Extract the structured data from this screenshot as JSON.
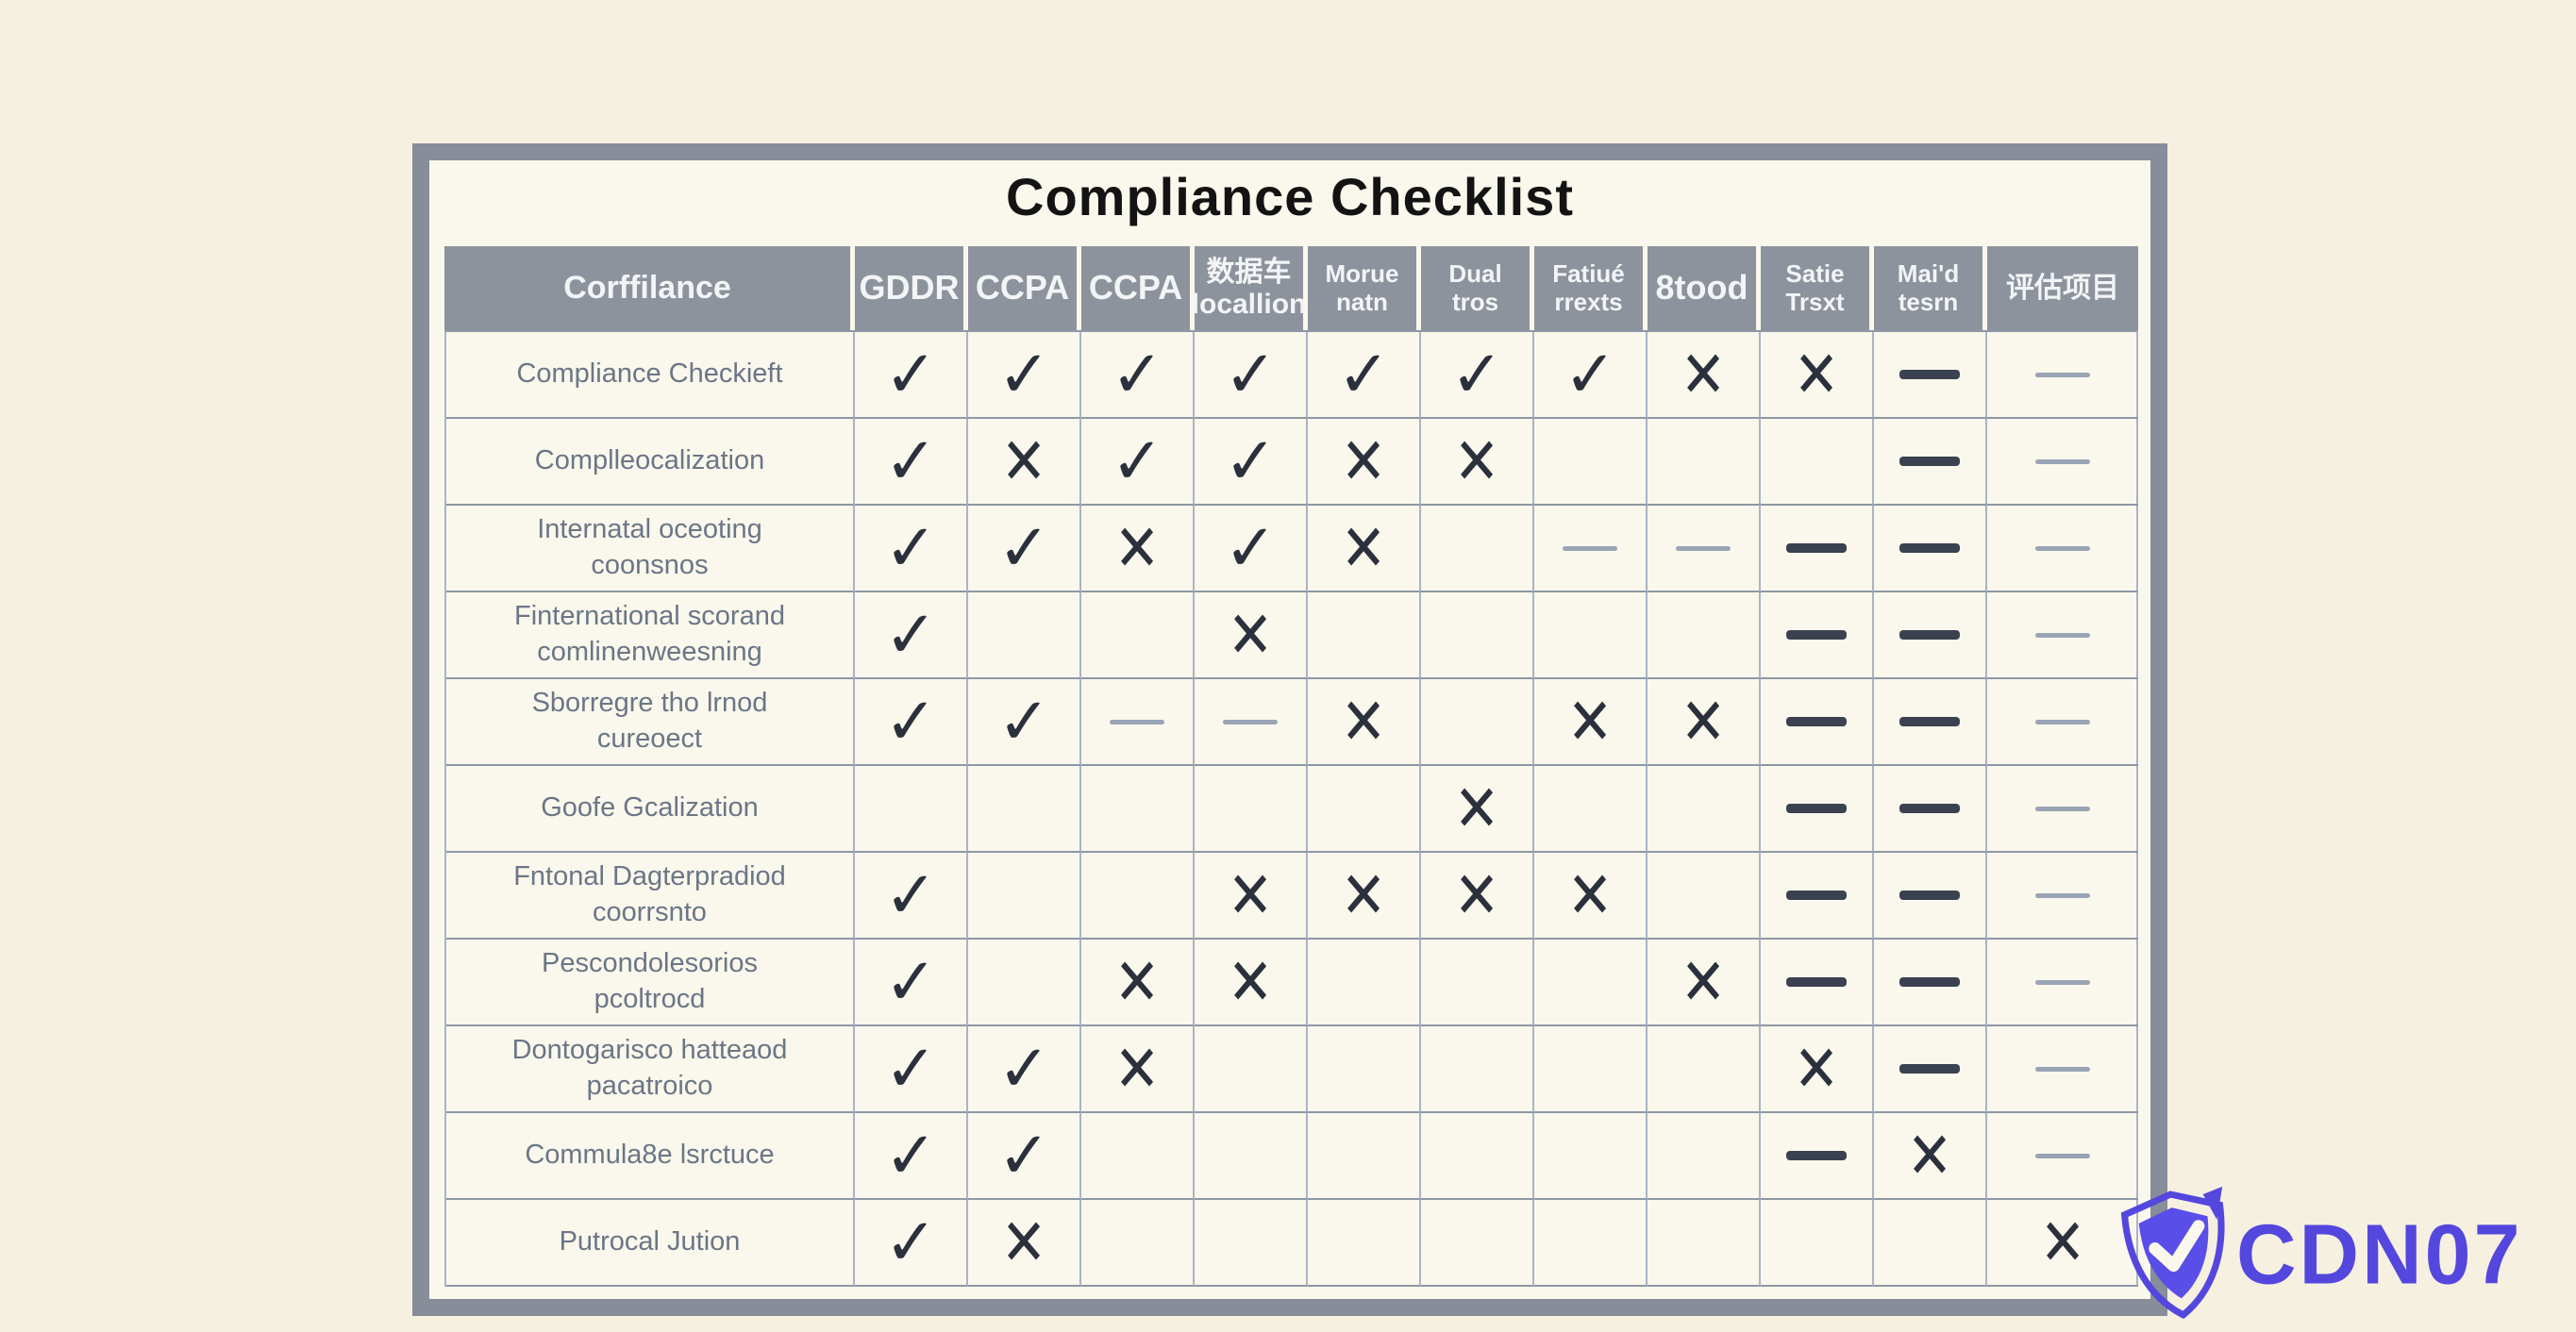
{
  "title": "Compliance Checklist",
  "marks": {
    "check": "✓",
    "x": "✕",
    "dash": "—"
  },
  "colors": {
    "page_bg": "#f6f0e1",
    "frame_border": "#878e99",
    "table_bg": "#faf7ec",
    "header_bg": "#8d939d",
    "header_text": "#f3f4f6",
    "grid_vertical": "#a9b4c6",
    "grid_horizontal": "#8d98a6",
    "mark": "#2a303c",
    "dash_bold": "#3a4150",
    "dash_thin": "#99a4b4",
    "label_text": "#6b7686",
    "watermark": "#5447dd"
  },
  "table": {
    "header": [
      "Corffilance",
      "GDDR",
      "CCPA",
      "CCPA",
      "数据车\nlocallion",
      "Morue\nnatn",
      "Dual\ntros",
      "Fatiué\nrrexts",
      "8tood",
      "Satie\nTrsxt",
      "Mai'd\ntesrn",
      "评估项目"
    ],
    "rows": [
      {
        "label": "Compliance Checkieft",
        "cells": [
          "check",
          "check",
          "check",
          "check",
          "check",
          "check",
          "check",
          "x",
          "x",
          "dash",
          "thin"
        ]
      },
      {
        "label": "Complleocalization",
        "cells": [
          "check",
          "x",
          "check",
          "check",
          "x",
          "x",
          "",
          "",
          "",
          "dash",
          "thin"
        ]
      },
      {
        "label": "Internatal oceoting\ncoonsnos",
        "cells": [
          "check",
          "check",
          "x",
          "check",
          "x",
          "",
          "thin",
          "thin",
          "dash",
          "dash",
          "thin"
        ]
      },
      {
        "label": "Finternational scorand\ncomlinenweesning",
        "cells": [
          "check",
          "",
          "",
          "x",
          "",
          "",
          "",
          "",
          "dash",
          "dash",
          "thin"
        ]
      },
      {
        "label": "Sborregre tho lrnod\ncureoect",
        "cells": [
          "check",
          "check",
          "thin",
          "thin",
          "x",
          "",
          "x",
          "x",
          "dash",
          "dash",
          "thin"
        ]
      },
      {
        "label": "Goofe Gcalization",
        "cells": [
          "",
          "",
          "",
          "",
          "",
          "x",
          "",
          "",
          "dash",
          "dash",
          "thin"
        ]
      },
      {
        "label": "Fntonal Dagterpradiod\ncoorrsnto",
        "cells": [
          "check",
          "",
          "",
          "x",
          "x",
          "x",
          "x",
          "",
          "dash",
          "dash",
          "thin"
        ]
      },
      {
        "label": "Pescondolesorios\npcoltrocd",
        "cells": [
          "check",
          "",
          "x",
          "x",
          "",
          "",
          "",
          "x",
          "dash",
          "dash",
          "thin"
        ]
      },
      {
        "label": "Dontogarisco hatteaod\npacatroico",
        "cells": [
          "check",
          "check",
          "x",
          "",
          "",
          "",
          "",
          "",
          "x",
          "dash",
          "thin"
        ]
      },
      {
        "label": "Commula8e lsrctuce",
        "cells": [
          "check",
          "check",
          "",
          "",
          "",
          "",
          "",
          "",
          "dash",
          "x",
          "thin"
        ]
      },
      {
        "label": "Putrocal Jution",
        "cells": [
          "check",
          "x",
          "",
          "",
          "",
          "",
          "",
          "",
          "",
          "",
          "x"
        ]
      }
    ]
  },
  "watermark": {
    "label": "CDN07",
    "icon": "shield-check-icon"
  }
}
